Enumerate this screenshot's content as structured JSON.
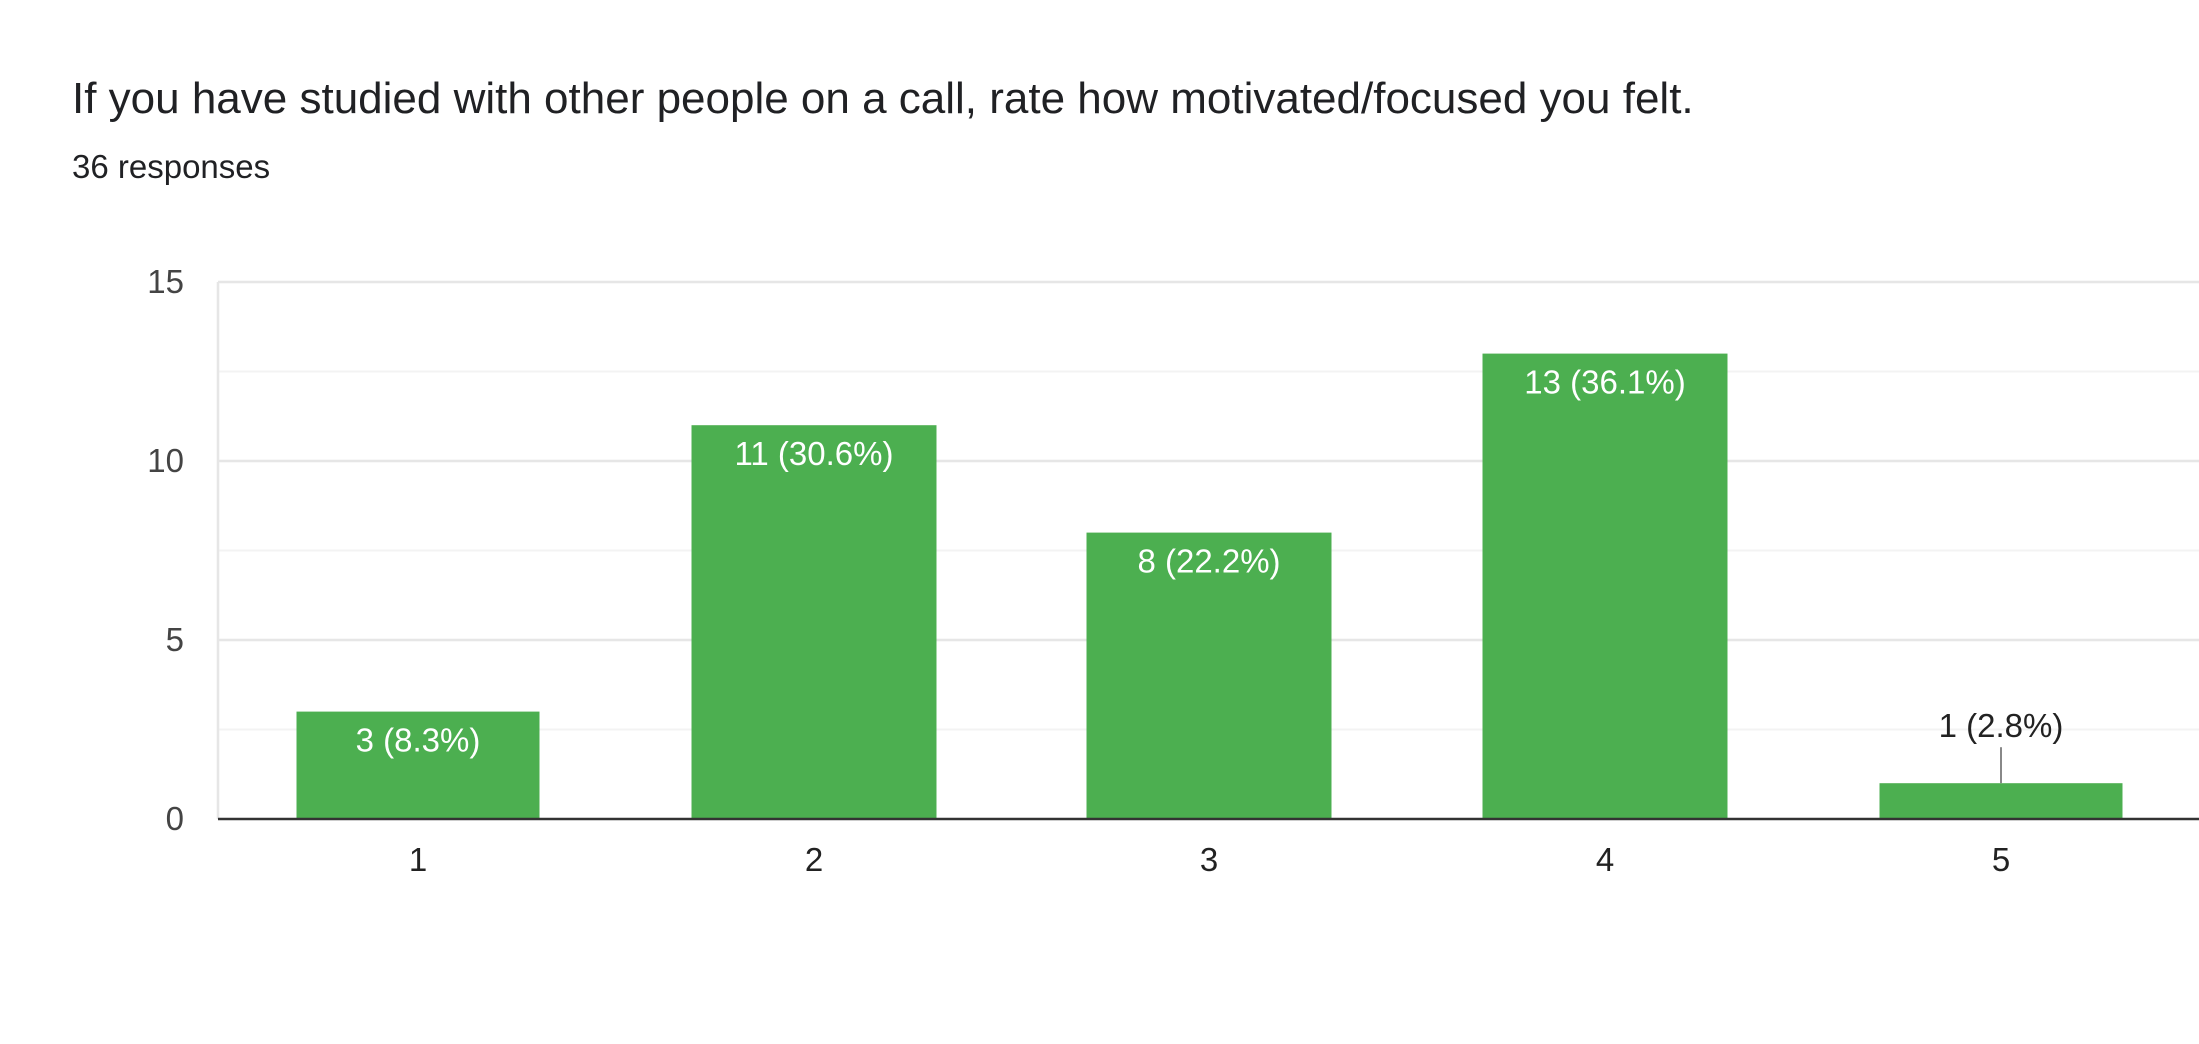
{
  "header": {
    "title": "If you have studied with other people on a call, rate how motivated/focused you felt.",
    "responses": "36 responses"
  },
  "colors": {
    "bar": "#4caf50",
    "grid_major": "#e6e6e6",
    "grid_minor": "#f3f3f3",
    "axis": "#333333",
    "label_inside": "#ffffff",
    "label_outside": "#222222"
  },
  "chart_data": {
    "type": "bar",
    "title": "If you have studied with other people on a call, rate how motivated/focused you felt.",
    "subtitle": "36 responses",
    "categories": [
      "1",
      "2",
      "3",
      "4",
      "5"
    ],
    "values": [
      3,
      11,
      8,
      13,
      1
    ],
    "data_labels": [
      "3 (8.3%)",
      "11 (30.6%)",
      "8 (22.2%)",
      "13 (36.1%)",
      "1 (2.8%)"
    ],
    "ylim": [
      0,
      15
    ],
    "yticks": [
      0,
      5,
      10,
      15
    ],
    "xlabel": "",
    "ylabel": "",
    "grid": true
  }
}
